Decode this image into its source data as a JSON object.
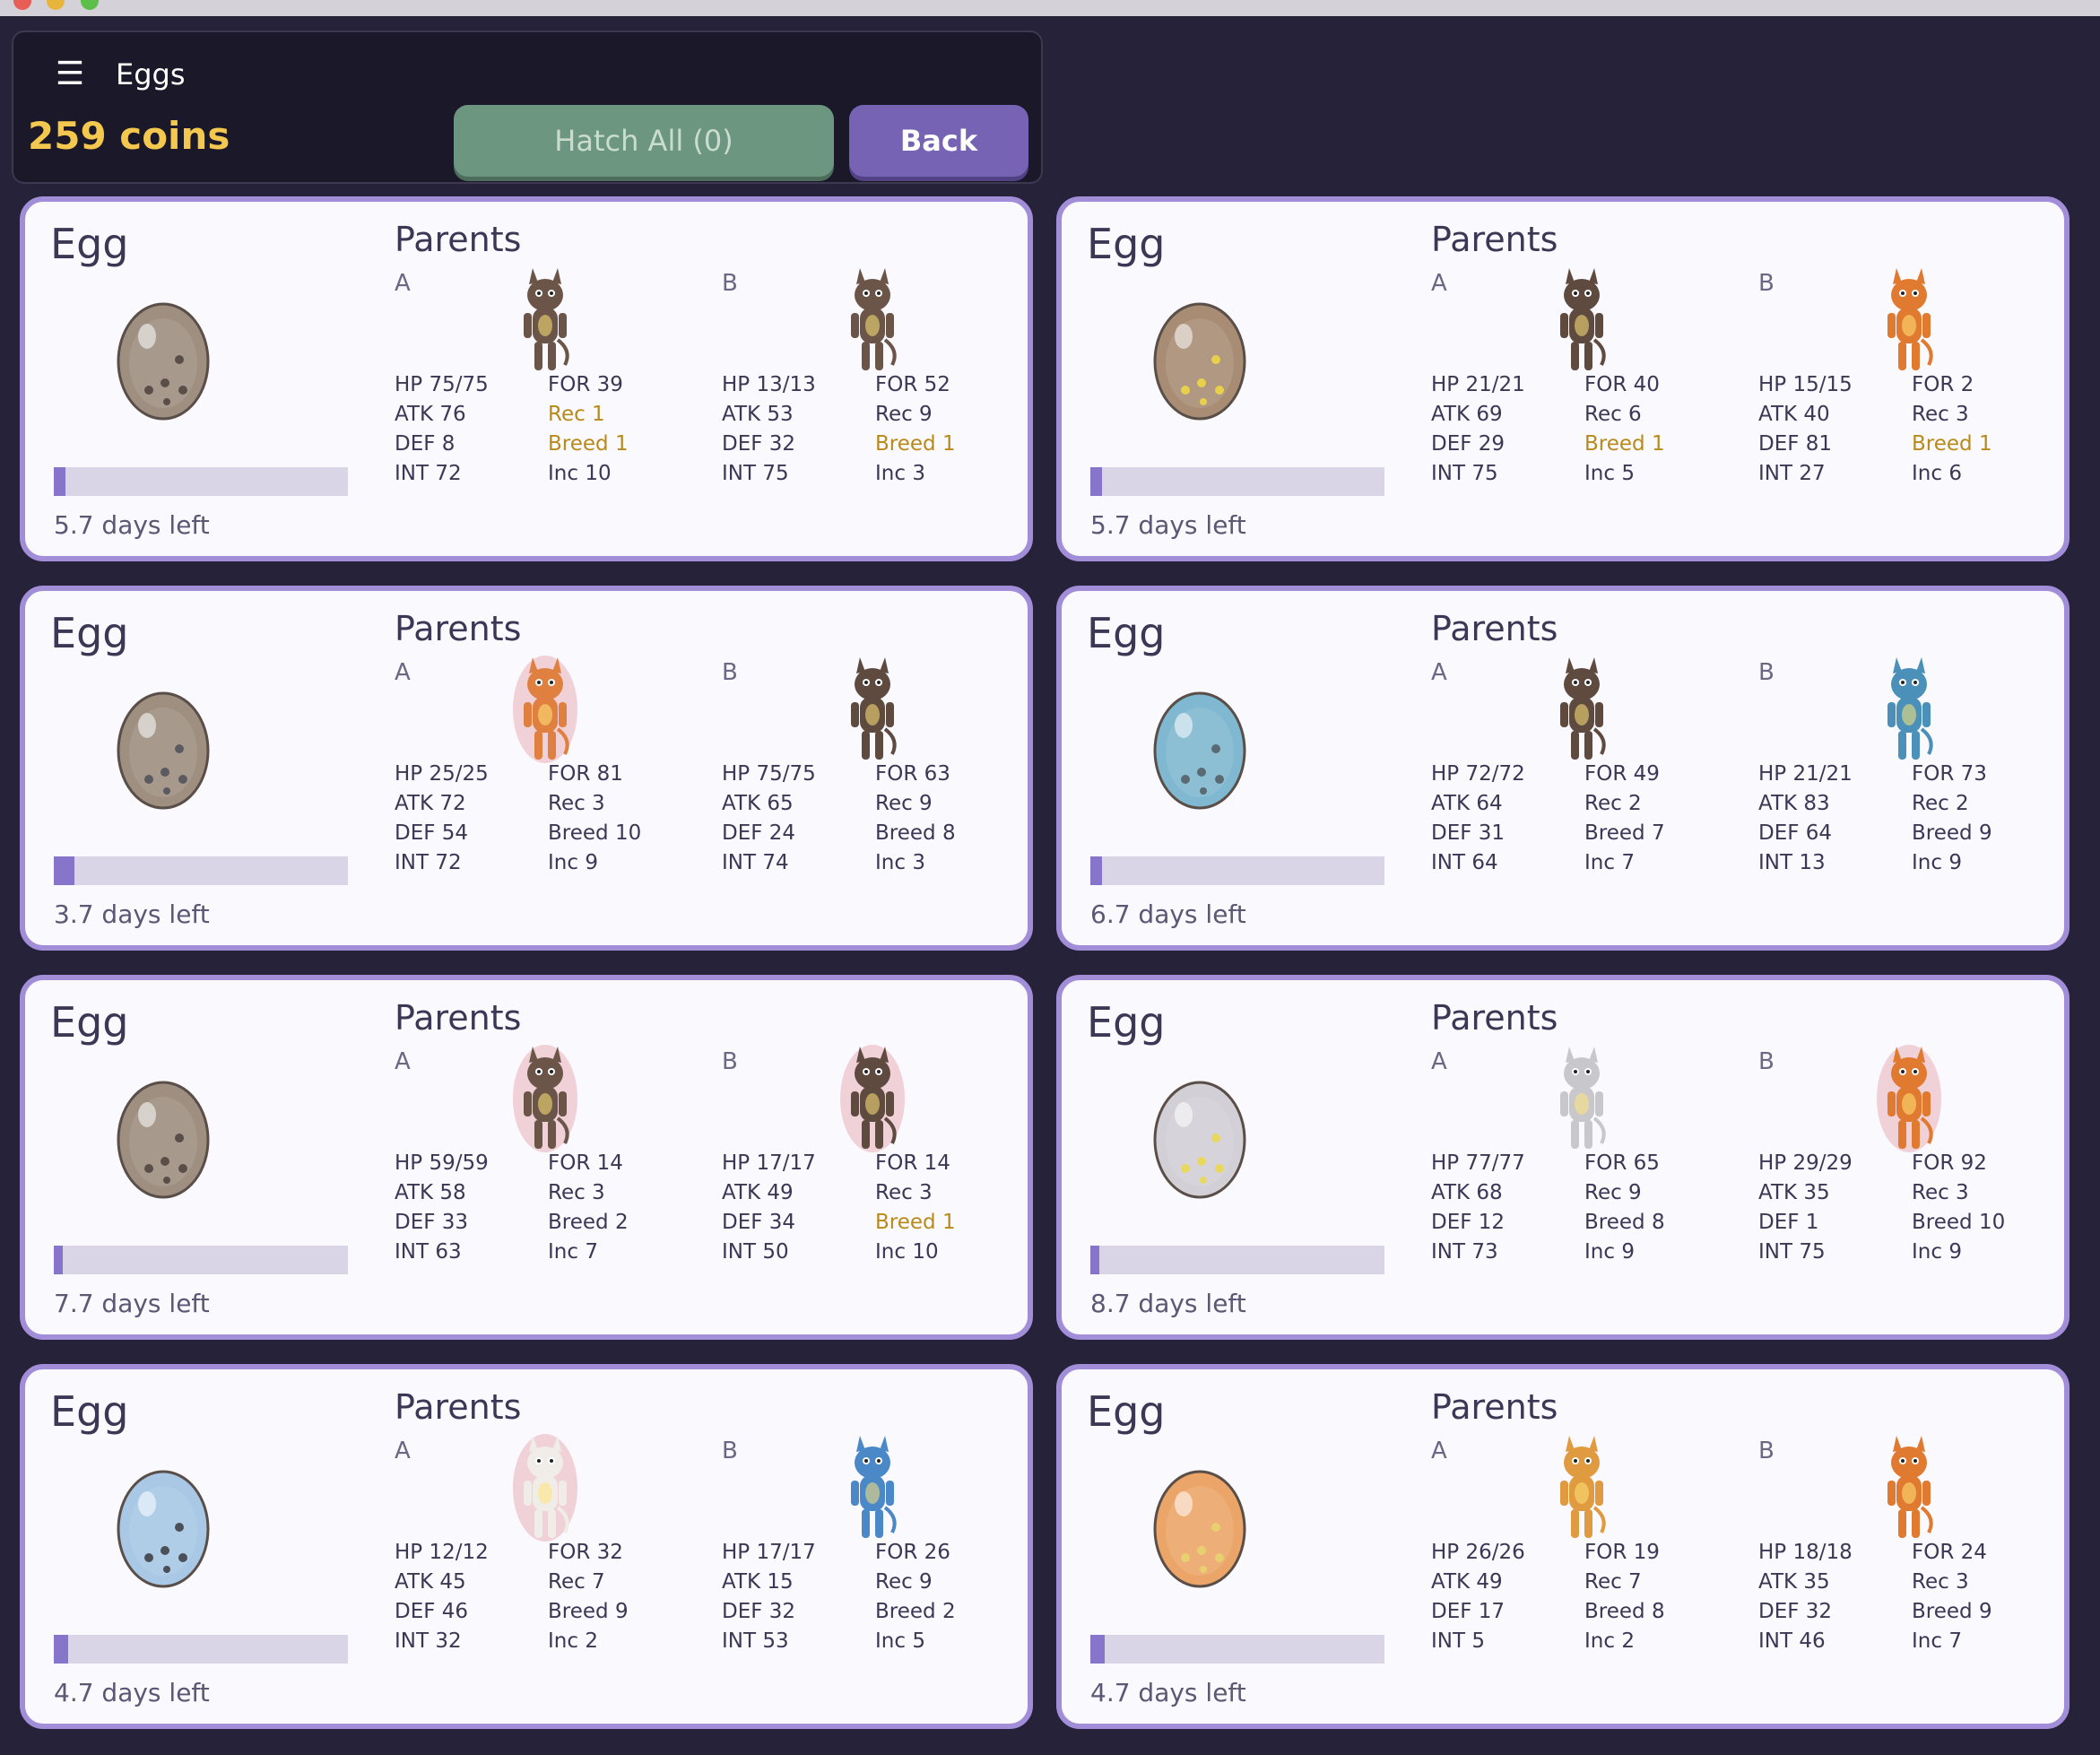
{
  "header": {
    "title": "Eggs",
    "coins": "259 coins",
    "hatch_all_label": "Hatch All (0)",
    "back_label": "Back"
  },
  "colors": {
    "background": "#25223a",
    "card_border": "#a28ed8",
    "accent": "#7663b4",
    "coins": "#f4c84e",
    "progress_fill": "#8775cc",
    "highlight_stat": "#b88a1a"
  },
  "eggs": [
    {
      "title": "Egg",
      "parents_title": "Parents",
      "egg_color": "#9e8f80",
      "spot_color": "#5a4f48",
      "progress_fraction": 0.04,
      "days_left": "5.7 days left",
      "parents": [
        {
          "label": "A",
          "monster": "brown-furry-monster",
          "monster_color": "#6b5548",
          "aura": "none",
          "hp": "HP  75/75",
          "atk": "ATK  76",
          "def": "DEF  8",
          "int": "INT  72",
          "for": "FOR  39",
          "rec": "Rec  1",
          "breed": "Breed  1",
          "inc": "Inc  10",
          "rec_gold": true,
          "breed_gold": true
        },
        {
          "label": "B",
          "monster": "brown-furry-monster",
          "monster_color": "#6b5548",
          "aura": "none",
          "hp": "HP  13/13",
          "atk": "ATK  53",
          "def": "DEF  32",
          "int": "INT  75",
          "for": "FOR  52",
          "rec": "Rec  9",
          "breed": "Breed  1",
          "inc": "Inc  3",
          "rec_gold": false,
          "breed_gold": true
        }
      ]
    },
    {
      "title": "Egg",
      "parents_title": "Parents",
      "egg_color": "#a88d74",
      "spot_color": "#e8d14a",
      "progress_fraction": 0.04,
      "days_left": "5.7 days left",
      "parents": [
        {
          "label": "A",
          "monster": "brown-furry-monster",
          "monster_color": "#5f4a40",
          "aura": "none",
          "hp": "HP  21/21",
          "atk": "ATK  69",
          "def": "DEF  29",
          "int": "INT  75",
          "for": "FOR  40",
          "rec": "Rec  6",
          "breed": "Breed  1",
          "inc": "Inc  5",
          "rec_gold": false,
          "breed_gold": true
        },
        {
          "label": "B",
          "monster": "orange-crowned-monster",
          "monster_color": "#e07a30",
          "aura": "none",
          "hp": "HP  15/15",
          "atk": "ATK  40",
          "def": "DEF  81",
          "int": "INT  27",
          "for": "FOR  2",
          "rec": "Rec  3",
          "breed": "Breed  1",
          "inc": "Inc  6",
          "rec_gold": false,
          "breed_gold": true
        }
      ]
    },
    {
      "title": "Egg",
      "parents_title": "Parents",
      "egg_color": "#9e8f80",
      "spot_color": "#5a5a60",
      "progress_fraction": 0.07,
      "days_left": "3.7 days left",
      "parents": [
        {
          "label": "A",
          "monster": "orange-horned-monster",
          "monster_color": "#e08040",
          "aura": "pink",
          "hp": "HP  25/25",
          "atk": "ATK  72",
          "def": "DEF  54",
          "int": "INT  72",
          "for": "FOR  81",
          "rec": "Rec  3",
          "breed": "Breed  10",
          "inc": "Inc  9",
          "rec_gold": false,
          "breed_gold": false
        },
        {
          "label": "B",
          "monster": "caped-brown-monster",
          "monster_color": "#5f4a40",
          "aura": "none",
          "hp": "HP  75/75",
          "atk": "ATK  65",
          "def": "DEF  24",
          "int": "INT  74",
          "for": "FOR  63",
          "rec": "Rec  9",
          "breed": "Breed  8",
          "inc": "Inc  3",
          "rec_gold": false,
          "breed_gold": false
        }
      ]
    },
    {
      "title": "Egg",
      "parents_title": "Parents",
      "egg_color": "#7fb8d0",
      "spot_color": "#5a6a72",
      "progress_fraction": 0.04,
      "days_left": "6.7 days left",
      "parents": [
        {
          "label": "A",
          "monster": "brown-crowned-monster",
          "monster_color": "#5f4a40",
          "aura": "none",
          "hp": "HP  72/72",
          "atk": "ATK  64",
          "def": "DEF  31",
          "int": "INT  64",
          "for": "FOR  49",
          "rec": "Rec  2",
          "breed": "Breed  7",
          "inc": "Inc  7",
          "rec_gold": false,
          "breed_gold": false
        },
        {
          "label": "B",
          "monster": "blue-haloed-monster",
          "monster_color": "#4a90b8",
          "aura": "none",
          "hp": "HP  21/21",
          "atk": "ATK  83",
          "def": "DEF  64",
          "int": "INT  13",
          "for": "FOR  73",
          "rec": "Rec  2",
          "breed": "Breed  9",
          "inc": "Inc  9",
          "rec_gold": false,
          "breed_gold": false
        }
      ]
    },
    {
      "title": "Egg",
      "parents_title": "Parents",
      "egg_color": "#9e8f80",
      "spot_color": "#5a4f48",
      "progress_fraction": 0.03,
      "days_left": "7.7 days left",
      "parents": [
        {
          "label": "A",
          "monster": "brown-crowned-monster",
          "monster_color": "#6b5548",
          "aura": "pink",
          "hp": "HP  59/59",
          "atk": "ATK  58",
          "def": "DEF  33",
          "int": "INT  63",
          "for": "FOR  14",
          "rec": "Rec  3",
          "breed": "Breed  2",
          "inc": "Inc  7",
          "rec_gold": false,
          "breed_gold": false
        },
        {
          "label": "B",
          "monster": "brown-crowned-monster",
          "monster_color": "#5f4a40",
          "aura": "pink",
          "hp": "HP  17/17",
          "atk": "ATK  49",
          "def": "DEF  34",
          "int": "INT  50",
          "for": "FOR  14",
          "rec": "Rec  3",
          "breed": "Breed  1",
          "inc": "Inc  10",
          "rec_gold": false,
          "breed_gold": true
        }
      ]
    },
    {
      "title": "Egg",
      "parents_title": "Parents",
      "egg_color": "#d2d0d6",
      "spot_color": "#e8d860",
      "progress_fraction": 0.03,
      "days_left": "8.7 days left",
      "parents": [
        {
          "label": "A",
          "monster": "white-eared-monster",
          "monster_color": "#c8c8cc",
          "aura": "none",
          "hp": "HP  77/77",
          "atk": "ATK  68",
          "def": "DEF  12",
          "int": "INT  73",
          "for": "FOR  65",
          "rec": "Rec  9",
          "breed": "Breed  8",
          "inc": "Inc  9",
          "rec_gold": false,
          "breed_gold": false
        },
        {
          "label": "B",
          "monster": "red-winged-monster",
          "monster_color": "#e07a30",
          "aura": "pink",
          "hp": "HP  29/29",
          "atk": "ATK  35",
          "def": "DEF  1",
          "int": "INT  75",
          "for": "FOR  92",
          "rec": "Rec  3",
          "breed": "Breed  10",
          "inc": "Inc  9",
          "rec_gold": false,
          "breed_gold": false
        }
      ]
    },
    {
      "title": "Egg",
      "parents_title": "Parents",
      "egg_color": "#a8c8e6",
      "spot_color": "#4a4f58",
      "progress_fraction": 0.05,
      "days_left": "4.7 days left",
      "parents": [
        {
          "label": "A",
          "monster": "white-crowned-monster",
          "monster_color": "#f0ece8",
          "aura": "pink",
          "hp": "HP  12/12",
          "atk": "ATK  45",
          "def": "DEF  46",
          "int": "INT  32",
          "for": "FOR  32",
          "rec": "Rec  7",
          "breed": "Breed  9",
          "inc": "Inc  2",
          "rec_gold": false,
          "breed_gold": false
        },
        {
          "label": "B",
          "monster": "blue-masked-monster",
          "monster_color": "#4a88c8",
          "aura": "none",
          "hp": "HP  17/17",
          "atk": "ATK  15",
          "def": "DEF  32",
          "int": "INT  53",
          "for": "FOR  26",
          "rec": "Rec  9",
          "breed": "Breed  2",
          "inc": "Inc  5",
          "rec_gold": false,
          "breed_gold": false
        }
      ]
    },
    {
      "title": "Egg",
      "parents_title": "Parents",
      "egg_color": "#eba568",
      "spot_color": "#e8d070",
      "progress_fraction": 0.05,
      "days_left": "4.7 days left",
      "parents": [
        {
          "label": "A",
          "monster": "orange-crowned-monster",
          "monster_color": "#e09a40",
          "aura": "none",
          "hp": "HP  26/26",
          "atk": "ATK  49",
          "def": "DEF  17",
          "int": "INT  5",
          "for": "FOR  19",
          "rec": "Rec  7",
          "breed": "Breed  8",
          "inc": "Inc  2",
          "rec_gold": false,
          "breed_gold": false
        },
        {
          "label": "B",
          "monster": "red-winged-monster",
          "monster_color": "#e07a30",
          "aura": "none",
          "hp": "HP  18/18",
          "atk": "ATK  35",
          "def": "DEF  32",
          "int": "INT  46",
          "for": "FOR  24",
          "rec": "Rec  3",
          "breed": "Breed  9",
          "inc": "Inc  7",
          "rec_gold": false,
          "breed_gold": false
        }
      ]
    }
  ]
}
